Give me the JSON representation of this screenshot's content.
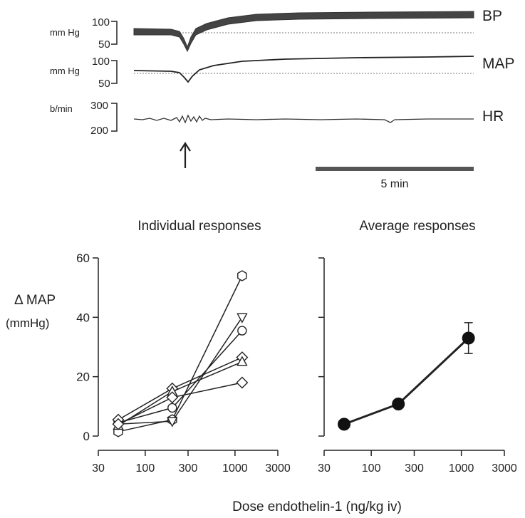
{
  "traces": {
    "channels": [
      {
        "label": "BP",
        "unit": "mm Hg",
        "ticks": [
          "100",
          "50"
        ]
      },
      {
        "label": "MAP",
        "unit": "mm Hg",
        "ticks": [
          "100",
          "50"
        ]
      },
      {
        "label": "HR",
        "unit": "b/min",
        "ticks": [
          "300",
          "200"
        ]
      }
    ],
    "scale_bar_label": "5 min"
  },
  "chart_data": [
    {
      "type": "line",
      "title": "Individual responses",
      "xlabel": "Dose endothelin-1 (ng/kg iv)",
      "ylabel": "Δ MAP",
      "ylabel_unit": "(mmHg)",
      "xscale": "log",
      "xlim": [
        30,
        3000
      ],
      "ylim": [
        0,
        60
      ],
      "xticks": [
        30,
        100,
        300,
        1000,
        3000
      ],
      "yticks": [
        0,
        20,
        40,
        60
      ],
      "x": [
        50,
        200,
        1200
      ],
      "series": [
        {
          "name": "hexagon",
          "marker": "hexagon",
          "values": [
            1.5,
            5.5,
            54
          ]
        },
        {
          "name": "triangle-down",
          "marker": "triangle-down",
          "values": [
            4,
            5,
            40
          ]
        },
        {
          "name": "circle",
          "marker": "circle",
          "values": [
            4.5,
            9.5,
            35.5
          ]
        },
        {
          "name": "diamond-1",
          "marker": "diamond",
          "values": [
            5.5,
            16,
            26.5
          ]
        },
        {
          "name": "triangle-up",
          "marker": "triangle-up",
          "values": [
            3.5,
            15,
            25
          ]
        },
        {
          "name": "diamond-2",
          "marker": "diamond",
          "values": [
            4,
            13,
            18
          ]
        }
      ]
    },
    {
      "type": "line",
      "title": "Average responses",
      "xlabel": "Dose endothelin-1 (ng/kg iv)",
      "xscale": "log",
      "xlim": [
        30,
        3000
      ],
      "ylim": [
        0,
        60
      ],
      "xticks": [
        30,
        100,
        300,
        1000,
        3000
      ],
      "yticks": [
        0,
        20,
        40,
        60
      ],
      "x": [
        50,
        200,
        1200
      ],
      "series": [
        {
          "name": "mean",
          "marker": "filled-circle",
          "values": [
            4,
            10.8,
            33
          ],
          "error": [
            0.6,
            1.2,
            5.2
          ]
        }
      ]
    }
  ]
}
